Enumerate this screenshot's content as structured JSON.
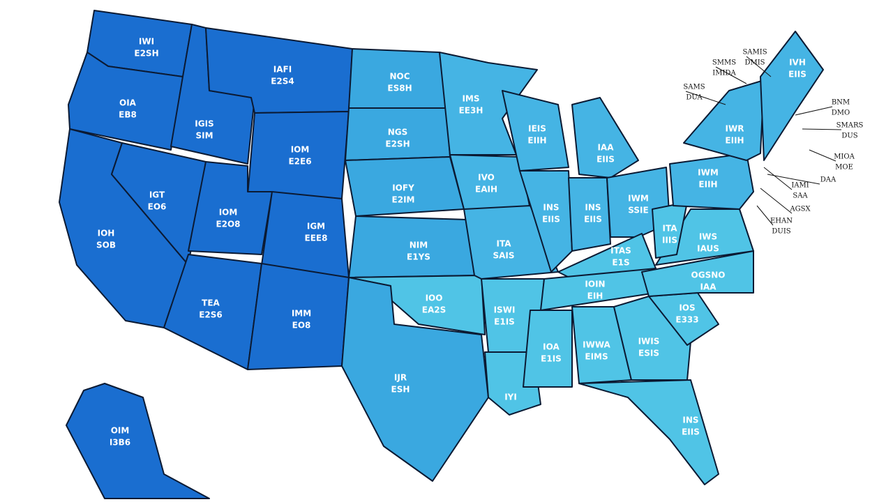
{
  "states": [
    {
      "lines": [
        "IWI",
        "E2SH"
      ]
    },
    {
      "lines": [
        "OIA",
        "EB8"
      ]
    },
    {
      "lines": [
        "IGIS",
        "SIM"
      ]
    },
    {
      "lines": [
        "IAFI",
        "E2S4"
      ]
    },
    {
      "lines": [
        "IOM",
        "E2E6"
      ]
    },
    {
      "lines": [
        "IOH",
        "SOB"
      ]
    },
    {
      "lines": [
        "IGT",
        "EO6"
      ]
    },
    {
      "lines": [
        "IOM",
        "E2O8"
      ]
    },
    {
      "lines": [
        "IGM",
        "EEE8"
      ]
    },
    {
      "lines": [
        "TEA",
        "E2S6"
      ]
    },
    {
      "lines": [
        "IMM",
        "EO8"
      ]
    },
    {
      "lines": [
        "OIM",
        "I3B6"
      ]
    },
    {
      "lines": [
        "NOC",
        "ES8H"
      ]
    },
    {
      "lines": [
        "NGS",
        "E2SH"
      ]
    },
    {
      "lines": [
        "IOFY",
        "E2IM"
      ]
    },
    {
      "lines": [
        "NIM",
        "E1YS"
      ]
    },
    {
      "lines": [
        "IOO",
        "EA2S"
      ]
    },
    {
      "lines": [
        "IJR",
        "ESH"
      ]
    },
    {
      "lines": [
        "IMS",
        "EE3H"
      ]
    },
    {
      "lines": [
        "IVO",
        "EAIH"
      ]
    },
    {
      "lines": [
        "ITA",
        "SAIS"
      ]
    },
    {
      "lines": [
        "ISWI",
        "E1IS"
      ]
    },
    {
      "lines": [
        "IYI"
      ]
    },
    {
      "lines": [
        "IEIS",
        "EIIH"
      ]
    },
    {
      "lines": [
        "IAA",
        "EIIS"
      ]
    },
    {
      "lines": [
        "INS",
        "EIIS"
      ]
    },
    {
      "lines": [
        "INS",
        "EIIS"
      ]
    },
    {
      "lines": [
        "IWM",
        "SSIE"
      ]
    },
    {
      "lines": [
        "ITAS",
        "E1S"
      ]
    },
    {
      "lines": [
        "IOIN",
        "EIH"
      ]
    },
    {
      "lines": [
        "IOA",
        "E1IS"
      ]
    },
    {
      "lines": [
        "IWWA",
        "EIMS"
      ]
    },
    {
      "lines": [
        "IWIS",
        "ESIS"
      ]
    },
    {
      "lines": [
        "INS",
        "EIIS"
      ]
    },
    {
      "lines": [
        "IOS",
        "E333"
      ]
    },
    {
      "lines": [
        "OGSNO",
        "IAA"
      ]
    },
    {
      "lines": [
        "IWS",
        "IAUS"
      ]
    },
    {
      "lines": [
        "ITA",
        "IIIS"
      ]
    },
    {
      "lines": [
        "IWM",
        "EIIH"
      ]
    },
    {
      "lines": [
        "IWR",
        "EIIH"
      ]
    },
    {
      "lines": [
        "IVH",
        "EIIS"
      ]
    }
  ],
  "callouts": [
    {
      "lines": [
        "SAMS",
        "DUA"
      ]
    },
    {
      "lines": [
        "SMMS",
        "IMIDA"
      ]
    },
    {
      "lines": [
        "SAMIS",
        "DMIS"
      ]
    },
    {
      "lines": [
        "BNM",
        "DMO"
      ]
    },
    {
      "lines": [
        "SMARS",
        "DUS"
      ]
    },
    {
      "lines": [
        "MIOA",
        "MOE"
      ]
    },
    {
      "lines": [
        "IAMI",
        "SAA"
      ]
    },
    {
      "lines": [
        "DAA"
      ]
    },
    {
      "lines": [
        "AGSX"
      ]
    },
    {
      "lines": [
        "EHAN",
        "DUIS"
      ]
    }
  ]
}
